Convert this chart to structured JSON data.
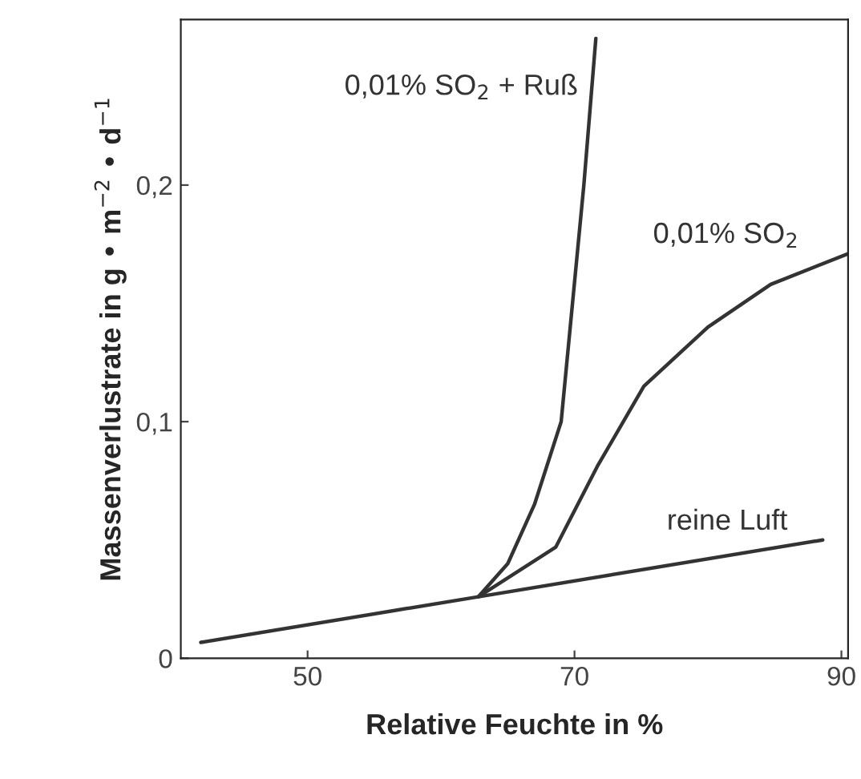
{
  "chart_data": {
    "type": "line",
    "xlabel": "Relative Feuchte in %",
    "ylabel": "Massenverlustrate in g • m$^{−2}$ • d$^{−1}$",
    "xlim": [
      40.5,
      90.5
    ],
    "ylim": [
      0,
      0.27
    ],
    "xticks": [
      50,
      70,
      90
    ],
    "yticks": [
      {
        "value": 0,
        "label": "0"
      },
      {
        "value": 0.1,
        "label": "0,1"
      },
      {
        "value": 0.2,
        "label": "0,2"
      }
    ],
    "grid": false,
    "legend": false,
    "marker": "none",
    "line_style": "solid",
    "series": [
      {
        "name": "0,01% SO$_{2}$ + Ruß",
        "color": "#333333",
        "x": [
          62.8,
          65,
          67,
          69,
          70.7,
          71.6
        ],
        "values": [
          0.026,
          0.04,
          0.065,
          0.1,
          0.2,
          0.262
        ]
      },
      {
        "name": "0,01% SO$_{2}$",
        "color": "#333333",
        "x": [
          62.8,
          68.6,
          71.7,
          75.2,
          80,
          84.7,
          90.5
        ],
        "values": [
          0.026,
          0.047,
          0.081,
          0.115,
          0.14,
          0.158,
          0.171
        ]
      },
      {
        "name": "reine Luft",
        "color": "#333333",
        "x": [
          42,
          62.8,
          88.6
        ],
        "values": [
          0.0067,
          0.026,
          0.05
        ]
      }
    ]
  }
}
